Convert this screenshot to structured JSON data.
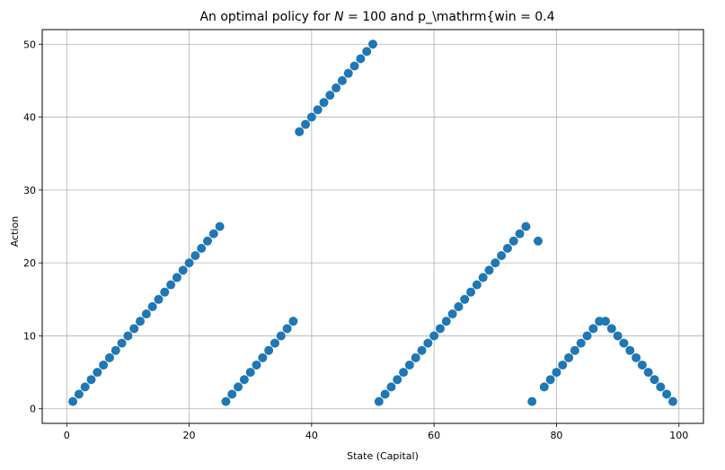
{
  "chart_data": {
    "type": "scatter",
    "title": "An optimal policy for N = 100 and p_\\mathrm{win = 0.4",
    "title_parts": {
      "prefix": "An optimal policy for ",
      "var": "N",
      "eq1": " = 100 and p_\\mathrm{win = 0.4"
    },
    "xlabel": "State (Capital)",
    "ylabel": "Action",
    "xlim": [
      -4,
      104
    ],
    "ylim": [
      -2,
      52
    ],
    "xticks": [
      0,
      20,
      40,
      60,
      80,
      100
    ],
    "yticks": [
      0,
      10,
      20,
      30,
      40,
      50
    ],
    "grid": true,
    "marker_color": "#1f77b4",
    "series": [
      {
        "x": [
          1,
          2,
          3,
          4,
          5,
          6,
          7,
          8,
          9,
          10,
          11,
          12,
          13,
          14,
          15,
          16,
          17,
          18,
          19,
          20,
          21,
          22,
          23,
          24,
          25,
          26,
          27,
          28,
          29,
          30,
          31,
          32,
          33,
          34,
          35,
          36,
          37,
          38,
          39,
          40,
          41,
          42,
          43,
          44,
          45,
          46,
          47,
          48,
          49,
          50,
          51,
          52,
          53,
          54,
          55,
          56,
          57,
          58,
          59,
          60,
          61,
          62,
          63,
          64,
          65,
          66,
          67,
          68,
          69,
          70,
          71,
          72,
          73,
          74,
          75,
          76,
          77,
          78,
          79,
          80,
          81,
          82,
          83,
          84,
          85,
          86,
          87,
          88,
          89,
          90,
          91,
          92,
          93,
          94,
          95,
          96,
          97,
          98,
          99
        ],
        "y": [
          1,
          2,
          3,
          4,
          5,
          6,
          7,
          8,
          9,
          10,
          11,
          12,
          13,
          14,
          15,
          16,
          17,
          18,
          19,
          20,
          21,
          22,
          23,
          24,
          25,
          1,
          2,
          3,
          4,
          5,
          6,
          7,
          8,
          9,
          10,
          11,
          12,
          38,
          39,
          40,
          41,
          42,
          43,
          44,
          45,
          46,
          47,
          48,
          49,
          50,
          1,
          2,
          3,
          4,
          5,
          6,
          7,
          8,
          9,
          10,
          11,
          12,
          13,
          14,
          15,
          16,
          17,
          18,
          19,
          20,
          21,
          22,
          23,
          24,
          25,
          1,
          23,
          3,
          4,
          5,
          6,
          7,
          8,
          9,
          10,
          11,
          12,
          12,
          11,
          10,
          9,
          8,
          7,
          6,
          5,
          4,
          3,
          2,
          1
        ]
      }
    ]
  }
}
